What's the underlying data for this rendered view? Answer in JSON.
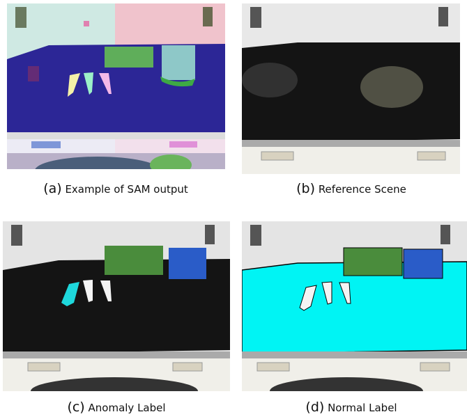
{
  "panels": [
    {
      "label": "(a)",
      "caption": "Example of SAM output"
    },
    {
      "label": "(b)",
      "caption": "Reference Scene"
    },
    {
      "label": "(c)",
      "caption": "Anomaly Label"
    },
    {
      "label": "(d)",
      "caption": "Normal Label"
    }
  ]
}
